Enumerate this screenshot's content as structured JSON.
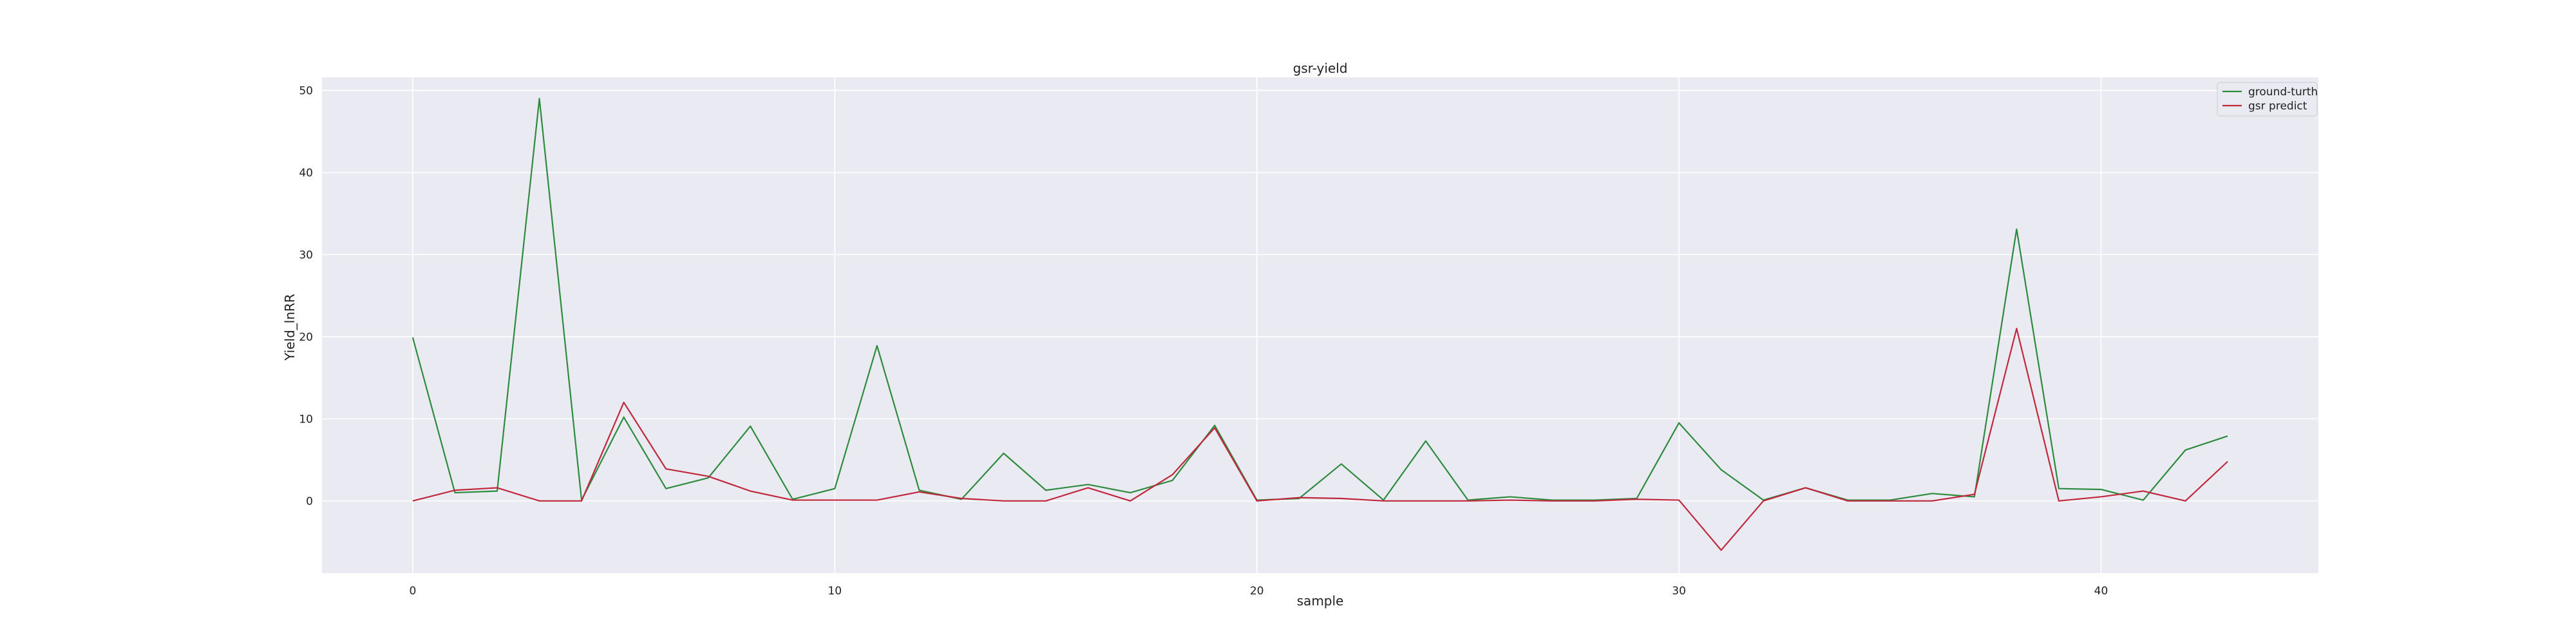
{
  "chart_data": {
    "type": "line",
    "title": "gsr-yield",
    "xlabel": "sample",
    "ylabel": "Yield_lnRR",
    "xlim": [
      -2.15,
      45.15
    ],
    "ylim": [
      -8.8,
      51.6
    ],
    "xticks": [
      0,
      10,
      20,
      30,
      40
    ],
    "yticks": [
      0,
      10,
      20,
      30,
      40,
      50
    ],
    "grid": true,
    "legend_position": "top-right",
    "background_color": "#eaeaf2",
    "x": [
      0,
      1,
      2,
      3,
      4,
      5,
      6,
      7,
      8,
      9,
      10,
      11,
      12,
      13,
      14,
      15,
      16,
      17,
      18,
      19,
      20,
      21,
      22,
      23,
      24,
      25,
      26,
      27,
      28,
      29,
      30,
      31,
      32,
      33,
      34,
      35,
      36,
      37,
      38,
      39,
      40,
      41,
      42,
      43
    ],
    "series": [
      {
        "name": "ground-turth",
        "color": "#2e8b3e",
        "values": [
          19.9,
          1.0,
          1.2,
          49.0,
          0.1,
          10.2,
          1.5,
          2.8,
          9.1,
          0.2,
          1.5,
          18.9,
          1.3,
          0.2,
          5.8,
          1.3,
          2.0,
          1.0,
          2.5,
          9.2,
          0.1,
          0.3,
          4.5,
          0.1,
          7.3,
          0.1,
          0.5,
          0.1,
          0.1,
          0.3,
          9.5,
          3.8,
          0.1,
          1.6,
          0.1,
          0.1,
          0.9,
          0.5,
          33.1,
          1.5,
          1.4,
          0.1,
          6.2,
          7.9
        ]
      },
      {
        "name": "gsr predict",
        "color": "#c0283c",
        "values": [
          0.0,
          1.3,
          1.6,
          0.0,
          0.0,
          12.0,
          3.9,
          3.0,
          1.2,
          0.1,
          0.1,
          0.1,
          1.1,
          0.3,
          0.0,
          0.0,
          1.6,
          0.0,
          3.2,
          8.9,
          0.0,
          0.4,
          0.3,
          0.0,
          0.0,
          0.0,
          0.1,
          0.0,
          0.0,
          0.2,
          0.1,
          -6.0,
          0.0,
          1.6,
          0.0,
          0.0,
          0.0,
          0.8,
          21.0,
          0.0,
          0.5,
          1.2,
          0.0,
          4.8
        ]
      }
    ]
  }
}
